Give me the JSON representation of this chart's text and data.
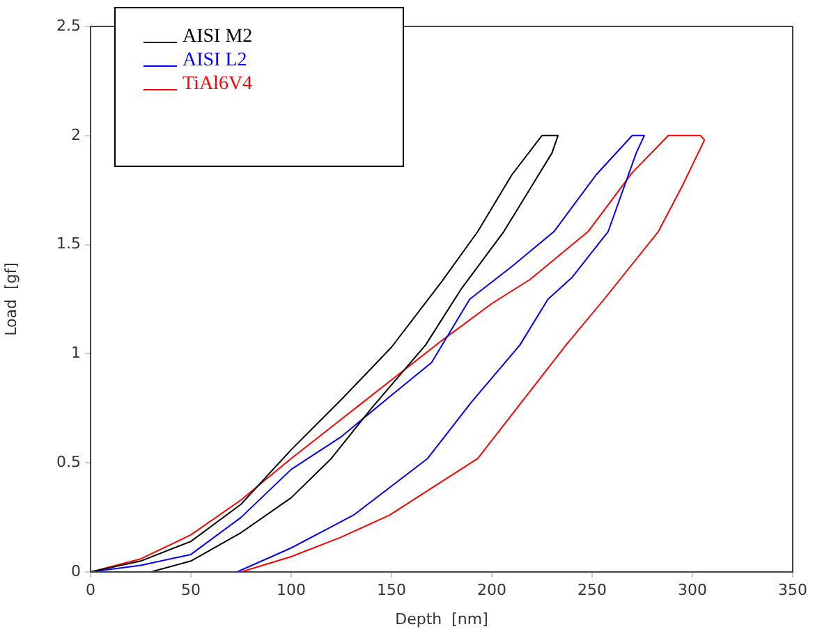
{
  "chart_data": {
    "type": "line",
    "xlabel": "Depth  [nm]",
    "ylabel": "Load  [gf]",
    "xlim": [
      0,
      350
    ],
    "xticks": [
      0,
      50,
      100,
      150,
      200,
      250,
      300,
      350
    ],
    "ylim": [
      0,
      2.5
    ],
    "yticks": [
      0,
      0.5,
      1,
      1.5,
      2,
      2.5
    ],
    "grid": false,
    "legend": "top left",
    "marker": "none",
    "line_style": "solid",
    "series": [
      {
        "name": "AISI M2",
        "color": "#000000",
        "x": [
          0,
          25,
          50,
          75,
          100,
          125,
          150,
          175,
          193,
          210,
          225,
          233,
          230,
          220,
          206,
          185,
          167,
          140,
          120,
          100,
          75,
          50,
          30
        ],
        "values": [
          0,
          0.05,
          0.14,
          0.31,
          0.56,
          0.79,
          1.03,
          1.33,
          1.56,
          1.82,
          2,
          2,
          1.92,
          1.77,
          1.56,
          1.3,
          1.04,
          0.75,
          0.52,
          0.34,
          0.18,
          0.05,
          0
        ]
      },
      {
        "name": "AISI L2",
        "color": "#0000ff",
        "x": [
          0,
          25,
          50,
          75,
          100,
          125,
          150,
          170,
          189,
          210,
          231,
          252,
          270,
          276,
          272,
          258,
          240,
          228,
          214,
          190,
          168,
          131,
          100,
          73
        ],
        "values": [
          0,
          0.03,
          0.08,
          0.25,
          0.47,
          0.62,
          0.81,
          0.96,
          1.25,
          1.4,
          1.56,
          1.82,
          2,
          2,
          1.92,
          1.56,
          1.35,
          1.25,
          1.04,
          0.78,
          0.52,
          0.26,
          0.11,
          0
        ]
      },
      {
        "name": "TiAl6V4",
        "color": "#ff0000",
        "x": [
          0,
          25,
          50,
          75,
          100,
          125,
          150,
          175,
          200,
          219,
          248,
          270,
          288,
          304,
          306,
          295,
          283,
          256,
          237,
          215,
          193,
          149,
          125,
          100,
          75
        ],
        "values": [
          0,
          0.06,
          0.17,
          0.33,
          0.52,
          0.7,
          0.88,
          1.06,
          1.23,
          1.34,
          1.56,
          1.83,
          2,
          2,
          1.98,
          1.77,
          1.56,
          1.25,
          1.04,
          0.78,
          0.52,
          0.26,
          0.16,
          0.07,
          0
        ]
      }
    ]
  }
}
